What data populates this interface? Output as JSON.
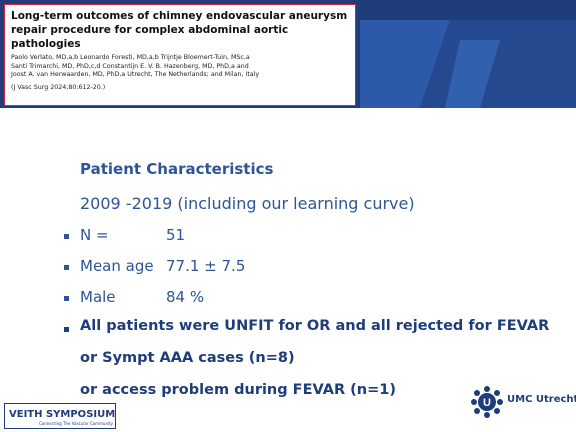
{
  "citation": {
    "title": "Long-term outcomes of chimney endovascular aneurysm repair procedure for complex abdominal aortic pathologies",
    "authors": [
      "Paolo Verlato, MD,a,b Leonardo Foresti, MD,a,b Trijntje Bloemert-Tuin, MSc,a",
      "Santi Trimarchi, MD, PhD,c,d Constantijn E. V. B. Hazenberg, MD, PhD,a and",
      "Joost A. van Herwaarden, MD, PhD,a Utrecht, The Netherlands; and Milan, Italy"
    ],
    "journal": "(J Vasc Surg 2024;80:612-20.)"
  },
  "heading": "Patient Characteristics",
  "subheading": "2009 -2019 (including our learning curve)",
  "items": [
    {
      "label": "N =",
      "value": "51"
    },
    {
      "label": "Mean age",
      "value": "77.1 ± 7.5"
    },
    {
      "label": "Male",
      "value": "84 %"
    }
  ],
  "note": [
    "All patients were UNFIT for OR and all rejected  for FEVAR",
    "or Sympt AAA cases (n=8)",
    "or access problem during FEVAR (n=1)"
  ],
  "logos": {
    "umc": "UMC Utrecht",
    "veith": "VEITH SYMPOSIUM",
    "veith_tagline": "Connecting The Vascular Community"
  }
}
